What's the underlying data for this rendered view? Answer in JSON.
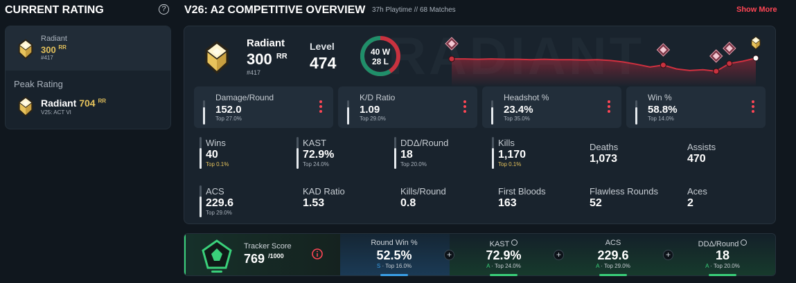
{
  "sidebar": {
    "title": "CURRENT RATING",
    "help": "?",
    "current": {
      "rank": "Radiant",
      "rr": "300",
      "rr_unit": "RR",
      "position": "#417"
    },
    "peak": {
      "heading": "Peak Rating",
      "rank": "Radiant",
      "rr": "704",
      "rr_unit": "RR",
      "season": "V25: ACT VI"
    }
  },
  "overview": {
    "title": "V26: A2 COMPETITIVE OVERVIEW",
    "playtime": "37h Playtime",
    "separator": "//",
    "matches": "68 Matches",
    "show_more": "Show More"
  },
  "summary": {
    "watermark": "RADIANT",
    "rank": "Radiant",
    "rr": "300",
    "rr_unit": "RR",
    "position": "#417",
    "level_label": "Level",
    "level": "474",
    "wins": 40,
    "wins_unit": "W",
    "losses": 28,
    "losses_unit": "L",
    "rr_history": [
      298,
      298,
      297,
      298,
      297,
      297,
      296,
      297,
      296,
      296,
      295,
      296,
      294,
      290,
      284,
      277,
      282,
      272,
      268,
      270,
      266,
      286,
      292,
      300
    ]
  },
  "highlights": [
    {
      "label": "Damage/Round",
      "value": "152.0",
      "percentile": "Top 27.0%"
    },
    {
      "label": "K/D Ratio",
      "value": "1.09",
      "percentile": "Top 29.0%"
    },
    {
      "label": "Headshot %",
      "value": "23.4%",
      "percentile": "Top 35.0%"
    },
    {
      "label": "Win %",
      "value": "58.8%",
      "percentile": "Top 14.0%"
    }
  ],
  "stats": [
    {
      "label": "Wins",
      "value": "40",
      "percentile": "Top 0.1%"
    },
    {
      "label": "KAST",
      "value": "72.9%",
      "percentile": "Top 24.0%"
    },
    {
      "label": "DDΔ/Round",
      "value": "18",
      "percentile": "Top 20.0%"
    },
    {
      "label": "Kills",
      "value": "1,170",
      "percentile": "Top 0.1%"
    },
    {
      "label": "Deaths",
      "value": "1,073"
    },
    {
      "label": "Assists",
      "value": "470"
    },
    {
      "label": "ACS",
      "value": "229.6",
      "percentile": "Top 29.0%"
    },
    {
      "label": "KAD Ratio",
      "value": "1.53"
    },
    {
      "label": "Kills/Round",
      "value": "0.8"
    },
    {
      "label": "First Bloods",
      "value": "163"
    },
    {
      "label": "Flawless Rounds",
      "value": "52"
    },
    {
      "label": "Aces",
      "value": "2"
    }
  ],
  "tracker": {
    "label": "Tracker Score",
    "score": "769",
    "max": "/1000",
    "separator": "·",
    "metrics": [
      {
        "label": "Round Win %",
        "value": "52.5%",
        "grade": "S",
        "percentile": "Top 16.0%"
      },
      {
        "label": "KAST",
        "value": "72.9%",
        "grade": "A",
        "percentile": "Top 24.0%"
      },
      {
        "label": "ACS",
        "value": "229.6",
        "grade": "A",
        "percentile": "Top 29.0%"
      },
      {
        "label": "DDΔ/Round",
        "value": "18",
        "grade": "A",
        "percentile": "Top 20.0%"
      }
    ]
  }
}
